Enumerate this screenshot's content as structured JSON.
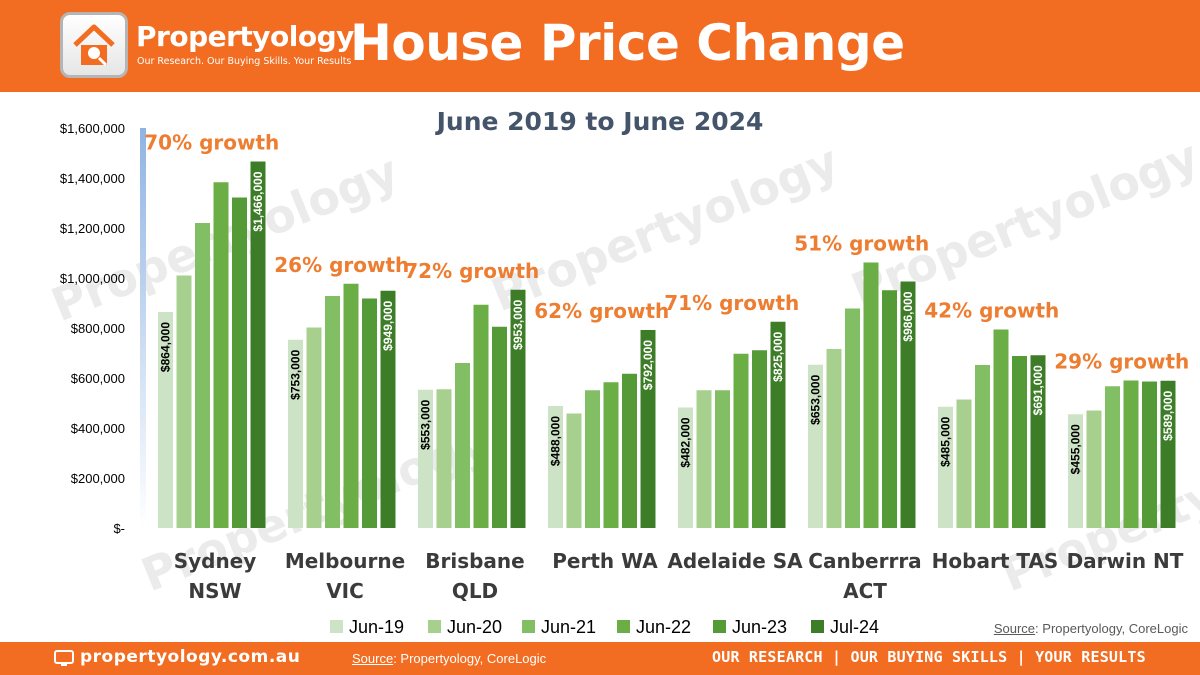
{
  "header": {
    "brand": "Propertyology",
    "tagline": "Our Research. Our Buying Skills. Your Results",
    "title": "House Price Change"
  },
  "footer": {
    "site": "propertyology.com.au",
    "source_label": "Source",
    "source_text": ": Propertyology, CoreLogic",
    "motto": "OUR RESEARCH | OUR BUYING SKILLS | YOUR RESULTS"
  },
  "source_note": {
    "label": "Source",
    "text": ": Propertyology, CoreLogic"
  },
  "watermark": "Propertyology",
  "colors": {
    "orange": "#f26d21",
    "growth_text": "#ed7d31",
    "series": [
      "#cde3c6",
      "#a7d08f",
      "#82be63",
      "#6aae45",
      "#549a36",
      "#3e7d28"
    ]
  },
  "chart_data": {
    "type": "bar",
    "title": "June 2019 to June 2024",
    "ylim": [
      0,
      1600000
    ],
    "yticks": [
      0,
      200000,
      400000,
      600000,
      800000,
      1000000,
      1200000,
      1400000,
      1600000
    ],
    "ytick_labels": [
      "$-",
      "$200,000",
      "$400,000",
      "$600,000",
      "$800,000",
      "$1,000,000",
      "$1,200,000",
      "$1,400,000",
      "$1,600,000"
    ],
    "categories": [
      [
        "Sydney",
        "NSW"
      ],
      [
        "Melbourne",
        "VIC"
      ],
      [
        "Brisbane",
        "QLD"
      ],
      [
        "Perth WA"
      ],
      [
        "Adelaide SA"
      ],
      [
        "Canberrra",
        "ACT"
      ],
      [
        "Hobart TAS"
      ],
      [
        "Darwin NT"
      ]
    ],
    "growth_labels": [
      "70% growth",
      "26% growth",
      "72% growth",
      "62% growth",
      "71% growth",
      "51% growth",
      "42% growth",
      "29% growth"
    ],
    "series": [
      {
        "name": "Jun-19",
        "values": [
          864000,
          753000,
          553000,
          488000,
          482000,
          653000,
          485000,
          455000
        ]
      },
      {
        "name": "Jun-20",
        "values": [
          1010000,
          802000,
          555000,
          458000,
          551000,
          716000,
          514000,
          470000
        ]
      },
      {
        "name": "Jun-21",
        "values": [
          1220000,
          928000,
          660000,
          551000,
          551000,
          878000,
          652000,
          567000
        ]
      },
      {
        "name": "Jun-22",
        "values": [
          1383000,
          977000,
          893000,
          583000,
          697000,
          1062000,
          794000,
          590000
        ]
      },
      {
        "name": "Jun-23",
        "values": [
          1322000,
          918000,
          805000,
          617000,
          711000,
          951000,
          688000,
          586000
        ]
      },
      {
        "name": "Jul-24",
        "values": [
          1466000,
          949000,
          953000,
          792000,
          825000,
          986000,
          691000,
          589000
        ]
      }
    ],
    "value_labels": {
      "first": [
        "$864,000",
        "$753,000",
        "$553,000",
        "$488,000",
        "$482,000",
        "$653,000",
        "$485,000",
        "$455,000"
      ],
      "last": [
        "$1,466,000",
        "$949,000",
        "$953,000",
        "$792,000",
        "$825,000",
        "$986,000",
        "$691,000",
        "$589,000"
      ]
    },
    "legend_position": "bottom-center"
  }
}
